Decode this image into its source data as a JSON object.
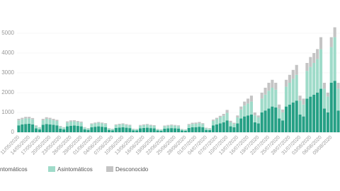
{
  "chart_data": {
    "type": "stacked-bar",
    "categories": [
      "11/05/2020",
      null,
      null,
      "14/05/2020",
      null,
      null,
      "17/05/2020",
      null,
      null,
      "20/05/2020",
      null,
      null,
      "23/05/2020",
      null,
      null,
      "26/05/2020",
      null,
      null,
      "29/05/2020",
      null,
      null,
      "01/06/2020",
      null,
      null,
      "04/06/2020",
      null,
      null,
      "07/06/2020",
      null,
      null,
      "10/06/2020",
      null,
      null,
      "13/06/2020",
      null,
      null,
      "16/06/2020",
      null,
      null,
      "19/06/2020",
      null,
      null,
      "22/06/2020",
      null,
      null,
      "25/06/2020",
      null,
      null,
      "28/06/2020",
      null,
      null,
      "01/07/2020",
      null,
      null,
      "04/07/2020",
      null,
      null,
      "07/07/2020",
      null,
      null,
      "10/07/2020",
      null,
      null,
      "13/07/2020",
      null,
      null,
      "16/07/2020",
      null,
      null,
      "19/07/2020",
      null,
      null,
      "22/07/2020",
      null,
      null,
      "25/07/2020",
      null,
      null,
      "28/07/2020",
      null,
      null,
      "31/07/2020",
      null,
      null,
      "03/08/2020",
      null,
      null,
      "06/08/2020",
      null,
      null,
      "09/08/2020",
      null,
      null
    ],
    "series": [
      {
        "name": "ntomáticos",
        "color": "#26a085",
        "values": [
          350,
          400,
          420,
          430,
          400,
          200,
          150,
          380,
          420,
          400,
          380,
          350,
          180,
          150,
          300,
          330,
          340,
          320,
          300,
          150,
          120,
          250,
          280,
          300,
          280,
          260,
          120,
          100,
          220,
          240,
          250,
          230,
          210,
          100,
          90,
          200,
          220,
          230,
          210,
          200,
          90,
          80,
          180,
          200,
          210,
          200,
          190,
          90,
          80,
          220,
          250,
          260,
          280,
          250,
          120,
          110,
          350,
          400,
          450,
          500,
          600,
          300,
          250,
          450,
          700,
          800,
          850,
          900,
          500,
          450,
          1000,
          1100,
          1200,
          1300,
          1250,
          700,
          600,
          1300,
          1400,
          1500,
          1600,
          900,
          800,
          1700,
          1800,
          1900,
          2000,
          2200,
          1200,
          1000,
          2500,
          2600,
          1100
        ]
      },
      {
        "name": "Asintomáticos",
        "color": "#9fdbc9",
        "values": [
          250,
          250,
          280,
          270,
          250,
          120,
          90,
          230,
          260,
          250,
          230,
          220,
          110,
          90,
          190,
          210,
          210,
          200,
          190,
          90,
          70,
          160,
          170,
          180,
          170,
          160,
          70,
          60,
          140,
          150,
          160,
          140,
          130,
          60,
          60,
          130,
          140,
          150,
          130,
          120,
          60,
          50,
          120,
          130,
          140,
          130,
          120,
          60,
          50,
          150,
          170,
          170,
          180,
          160,
          80,
          70,
          230,
          260,
          300,
          330,
          380,
          200,
          170,
          300,
          450,
          550,
          600,
          650,
          350,
          300,
          700,
          800,
          900,
          950,
          900,
          500,
          400,
          1000,
          1100,
          1200,
          1300,
          700,
          600,
          1400,
          1500,
          1600,
          1700,
          2000,
          1000,
          800,
          1800,
          2200,
          1100
        ]
      },
      {
        "name": "Desconocido",
        "color": "#c4c4c4",
        "values": [
          80,
          80,
          80,
          80,
          70,
          30,
          20,
          70,
          80,
          80,
          70,
          60,
          30,
          20,
          60,
          60,
          60,
          50,
          50,
          20,
          20,
          40,
          40,
          40,
          40,
          40,
          20,
          20,
          40,
          40,
          40,
          40,
          40,
          20,
          20,
          40,
          40,
          40,
          40,
          40,
          20,
          20,
          40,
          40,
          40,
          40,
          40,
          20,
          20,
          50,
          60,
          60,
          60,
          50,
          30,
          30,
          60,
          70,
          80,
          100,
          150,
          80,
          60,
          100,
          150,
          200,
          250,
          300,
          150,
          100,
          300,
          350,
          400,
          400,
          350,
          200,
          150,
          350,
          400,
          450,
          500,
          250,
          300,
          400,
          500,
          500,
          500,
          600,
          300,
          200,
          500,
          500,
          300
        ]
      }
    ],
    "ylim": [
      0,
      5500
    ],
    "yticks": [
      0,
      1000,
      2000,
      3000,
      4000,
      5000
    ],
    "grid": true
  }
}
